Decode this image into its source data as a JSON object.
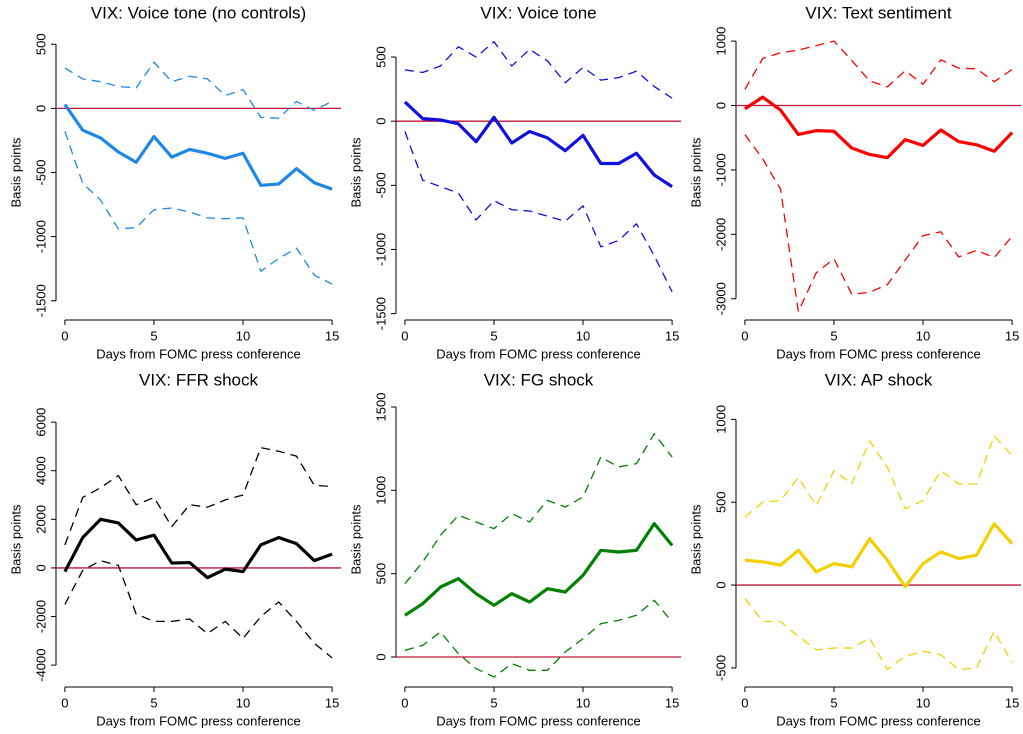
{
  "chart_data": [
    {
      "type": "line",
      "title": "VIX: Voice tone (no controls)",
      "xlabel": "Days from FOMC press conference",
      "ylabel": "Basis points",
      "x": [
        0,
        1,
        2,
        3,
        4,
        5,
        6,
        7,
        8,
        9,
        10,
        11,
        12,
        13,
        14,
        15
      ],
      "xlim": [
        -0.5,
        15.5
      ],
      "xticks": [
        0,
        5,
        10,
        15
      ],
      "ylim": [
        -1650,
        650
      ],
      "yticks": [
        -1500,
        -1000,
        -500,
        0,
        500
      ],
      "zero_line_color": "#c0143c",
      "series": [
        {
          "color": "#1e88e5",
          "style": "solid",
          "values": [
            30,
            -170,
            -230,
            -340,
            -420,
            -220,
            -380,
            -320,
            -350,
            -390,
            -350,
            -600,
            -590,
            -470,
            -580,
            -630
          ]
        },
        {
          "color": "#1e88e5",
          "style": "dashed",
          "values": [
            315,
            230,
            208,
            170,
            160,
            360,
            208,
            250,
            230,
            100,
            146,
            -70,
            -77,
            54,
            -15,
            54
          ]
        },
        {
          "color": "#1e88e5",
          "style": "dashed",
          "values": [
            -180,
            -585,
            -715,
            -940,
            -930,
            -790,
            -777,
            -808,
            -854,
            -860,
            -854,
            -1270,
            -1170,
            -1090,
            -1300,
            -1370
          ]
        }
      ]
    },
    {
      "type": "line",
      "title": "VIX: Voice tone",
      "xlabel": "Days from FOMC press conference",
      "ylabel": "Basis points",
      "x": [
        0,
        1,
        2,
        3,
        4,
        5,
        6,
        7,
        8,
        9,
        10,
        11,
        12,
        13,
        14,
        15
      ],
      "xlim": [
        -0.5,
        15.5
      ],
      "xticks": [
        0,
        5,
        10,
        15
      ],
      "ylim": [
        -1550,
        750
      ],
      "yticks": [
        -1500,
        -1000,
        -500,
        0,
        500
      ],
      "zero_line_color": "#c0143c",
      "series": [
        {
          "color": "#1010e0",
          "style": "solid",
          "values": [
            150,
            20,
            10,
            -20,
            -160,
            30,
            -170,
            -80,
            -130,
            -230,
            -110,
            -330,
            -330,
            -250,
            -420,
            -510
          ]
        },
        {
          "color": "#1010e0",
          "style": "dashed",
          "values": [
            400,
            380,
            430,
            580,
            500,
            620,
            430,
            560,
            470,
            300,
            420,
            320,
            340,
            390,
            270,
            180
          ]
        },
        {
          "color": "#1010e0",
          "style": "dashed",
          "values": [
            -80,
            -460,
            -510,
            -560,
            -770,
            -620,
            -690,
            -700,
            -740,
            -780,
            -660,
            -980,
            -930,
            -800,
            -1050,
            -1330
          ]
        }
      ]
    },
    {
      "type": "line",
      "title": "VIX: Text sentiment",
      "xlabel": "Days from FOMC press conference",
      "ylabel": "Basis points",
      "x": [
        0,
        1,
        2,
        3,
        4,
        5,
        6,
        7,
        8,
        9,
        10,
        11,
        12,
        13,
        14,
        15
      ],
      "xlim": [
        -0.5,
        15.5
      ],
      "xticks": [
        0,
        5,
        10,
        15
      ],
      "ylim": [
        -3330,
        1250
      ],
      "yticks": [
        -3000,
        -2000,
        -1000,
        0,
        1000
      ],
      "zero_line_color": "#c0143c",
      "series": [
        {
          "color": "#ff0000",
          "style": "solid",
          "values": [
            -50,
            130,
            -70,
            -450,
            -390,
            -400,
            -660,
            -760,
            -810,
            -530,
            -620,
            -380,
            -560,
            -610,
            -710,
            -420
          ]
        },
        {
          "color": "#ff0000",
          "style": "dashed",
          "values": [
            250,
            730,
            820,
            860,
            930,
            1000,
            700,
            380,
            290,
            540,
            330,
            710,
            580,
            570,
            370,
            560
          ]
        },
        {
          "color": "#ff0000",
          "style": "dashed",
          "values": [
            -450,
            -830,
            -1300,
            -3200,
            -2600,
            -2380,
            -2930,
            -2900,
            -2780,
            -2400,
            -2020,
            -1960,
            -2350,
            -2250,
            -2360,
            -2030
          ]
        }
      ]
    },
    {
      "type": "line",
      "title": "VIX: FFR shock",
      "xlabel": "Days from FOMC press conference",
      "ylabel": "Basis points",
      "x": [
        0,
        1,
        2,
        3,
        4,
        5,
        6,
        7,
        8,
        9,
        10,
        11,
        12,
        13,
        14,
        15
      ],
      "xlim": [
        -0.5,
        15.5
      ],
      "xticks": [
        0,
        5,
        10,
        15
      ],
      "ylim": [
        -4900,
        7240
      ],
      "yticks": [
        -4000,
        -2000,
        0,
        2000,
        4000,
        6000
      ],
      "zero_line_color": "#c0143c",
      "series": [
        {
          "color": "#000000",
          "style": "solid",
          "values": [
            -150,
            1250,
            2000,
            1850,
            1150,
            1350,
            200,
            220,
            -400,
            -50,
            -150,
            950,
            1250,
            1000,
            300,
            570
          ]
        },
        {
          "color": "#000000",
          "style": "dashed",
          "values": [
            950,
            2900,
            3300,
            3800,
            2600,
            2900,
            1700,
            2600,
            2500,
            2800,
            3000,
            4950,
            4800,
            4600,
            3400,
            3350
          ]
        },
        {
          "color": "#000000",
          "style": "dashed",
          "values": [
            -1500,
            -100,
            300,
            100,
            -1900,
            -2200,
            -2200,
            -2100,
            -2700,
            -2200,
            -2900,
            -2000,
            -1400,
            -2200,
            -3100,
            -3700
          ]
        }
      ]
    },
    {
      "type": "line",
      "title": "VIX: FG shock",
      "xlabel": "Days from FOMC press conference",
      "ylabel": "Basis points",
      "x": [
        0,
        1,
        2,
        3,
        4,
        5,
        6,
        7,
        8,
        9,
        10,
        11,
        12,
        13,
        14,
        15
      ],
      "xlim": [
        -0.5,
        15.5
      ],
      "xticks": [
        0,
        5,
        10,
        15
      ],
      "ylim": [
        -180,
        1590
      ],
      "yticks": [
        0,
        500,
        1000,
        1500
      ],
      "zero_line_color": "#c0143c",
      "series": [
        {
          "color": "#008000",
          "style": "solid",
          "values": [
            250,
            320,
            420,
            470,
            380,
            310,
            380,
            330,
            410,
            390,
            490,
            640,
            630,
            640,
            800,
            670
          ]
        },
        {
          "color": "#008000",
          "style": "dashed",
          "values": [
            440,
            570,
            730,
            850,
            810,
            770,
            860,
            810,
            940,
            900,
            960,
            1200,
            1140,
            1160,
            1340,
            1200
          ]
        },
        {
          "color": "#008000",
          "style": "dashed",
          "values": [
            40,
            70,
            150,
            20,
            -70,
            -120,
            -40,
            -80,
            -80,
            30,
            110,
            200,
            220,
            250,
            340,
            210
          ]
        }
      ]
    },
    {
      "type": "line",
      "title": "VIX: AP shock",
      "xlabel": "Days from FOMC press conference",
      "ylabel": "Basis points",
      "x": [
        0,
        1,
        2,
        3,
        4,
        5,
        6,
        7,
        8,
        9,
        10,
        11,
        12,
        13,
        14,
        15
      ],
      "xlim": [
        -0.5,
        15.5
      ],
      "xticks": [
        0,
        5,
        10,
        15
      ],
      "ylim": [
        -615,
        1165
      ],
      "yticks": [
        -500,
        0,
        500,
        1000
      ],
      "zero_line_color": "#c0143c",
      "series": [
        {
          "color": "#f5d000",
          "style": "solid",
          "values": [
            150,
            140,
            120,
            210,
            80,
            130,
            110,
            280,
            150,
            -10,
            130,
            200,
            160,
            180,
            370,
            250
          ]
        },
        {
          "color": "#f5d000",
          "style": "dashed",
          "values": [
            410,
            500,
            510,
            650,
            480,
            690,
            610,
            870,
            710,
            460,
            510,
            690,
            610,
            610,
            900,
            780
          ]
        },
        {
          "color": "#f5d000",
          "style": "dashed",
          "values": [
            -80,
            -220,
            -220,
            -310,
            -390,
            -380,
            -380,
            -320,
            -510,
            -430,
            -400,
            -420,
            -510,
            -500,
            -280,
            -470
          ]
        }
      ]
    }
  ]
}
